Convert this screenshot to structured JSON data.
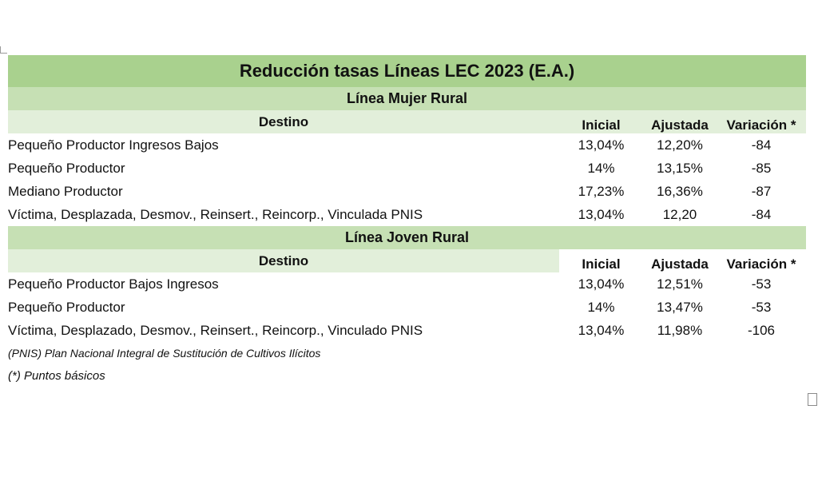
{
  "title": "Reducción tasas Líneas LEC 2023 (E.A.)",
  "columns": {
    "destino": "Destino",
    "inicial": "Inicial",
    "ajustada": "Ajustada",
    "variacion": "Variación *"
  },
  "mujer": {
    "title": "Línea Mujer Rural",
    "rows": [
      {
        "destino": "Pequeño Productor Ingresos Bajos",
        "inicial": "13,04%",
        "ajustada": "12,20%",
        "variacion": "-84"
      },
      {
        "destino": "Pequeño Productor",
        "inicial": "14%",
        "ajustada": "13,15%",
        "variacion": "-85"
      },
      {
        "destino": "Mediano Productor",
        "inicial": "17,23%",
        "ajustada": "16,36%",
        "variacion": "-87"
      },
      {
        "destino": "Víctima, Desplazada, Desmov., Reinsert., Reincorp., Vinculada PNIS",
        "inicial": "13,04%",
        "ajustada": "12,20",
        "variacion": "-84"
      }
    ]
  },
  "joven": {
    "title": "Línea Joven Rural",
    "rows": [
      {
        "destino": "Pequeño Productor Bajos Ingresos",
        "inicial": "13,04%",
        "ajustada": "12,51%",
        "variacion": "-53"
      },
      {
        "destino": "Pequeño Productor",
        "inicial": "14%",
        "ajustada": "13,47%",
        "variacion": "-53"
      },
      {
        "destino": "Víctima, Desplazado, Desmov., Reinsert., Reincorp., Vinculado PNIS",
        "inicial": "13,04%",
        "ajustada": "11,98%",
        "variacion": "-106"
      }
    ]
  },
  "notes": [
    "(PNIS) Plan Nacional Integral de Sustitución de Cultivos Ilícitos",
    "(*) Puntos básicos"
  ]
}
